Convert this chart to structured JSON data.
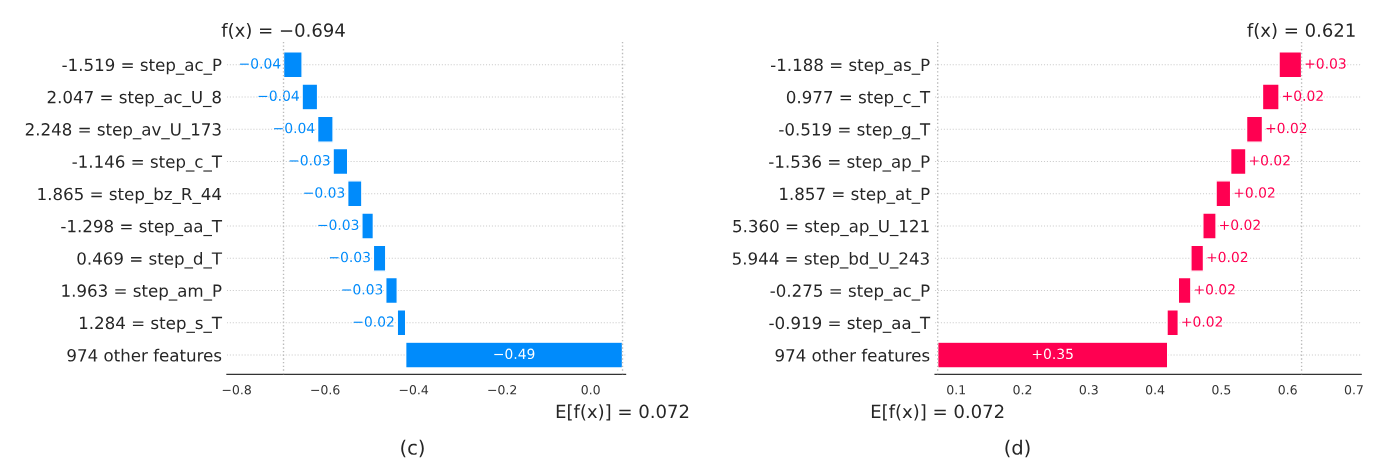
{
  "chart_data": [
    {
      "type": "bar",
      "orientation": "horizontal",
      "categories": [
        "-1.519 = step_ac_P",
        "2.047 = step_ac_U_8",
        "2.248 = step_av_U_173",
        "-1.146 = step_c_T",
        "1.865 = step_bz_R_44",
        "-1.298 = step_aa_T",
        "0.469 = step_d_T",
        "1.963 = step_am_P",
        "1.284 = step_s_T",
        "974 other features"
      ],
      "values": [
        -0.042,
        -0.035,
        -0.035,
        -0.033,
        -0.032,
        -0.026,
        -0.028,
        -0.026,
        -0.019,
        -0.49
      ],
      "base": [
        -0.652,
        -0.617,
        -0.582,
        -0.549,
        -0.517,
        -0.491,
        -0.463,
        -0.437,
        -0.418,
        0.072
      ],
      "value_labels": [
        "−0.04",
        "−0.04",
        "−0.04",
        "−0.03",
        "−0.03",
        "−0.03",
        "−0.03",
        "−0.03",
        "−0.02",
        "−0.49"
      ],
      "colors": [
        "#008bfb",
        "#008bfb",
        "#008bfb",
        "#008bfb",
        "#008bfb",
        "#008bfb",
        "#008bfb",
        "#008bfb",
        "#008bfb",
        "#008bfb"
      ],
      "xlim": [
        -0.822,
        0.079
      ],
      "xticks": [
        {
          "value": -0.8,
          "label": "−0.8"
        },
        {
          "value": -0.6,
          "label": "−0.6"
        },
        {
          "value": -0.4,
          "label": "−0.4"
        },
        {
          "value": -0.2,
          "label": "−0.2"
        },
        {
          "value": 0.0,
          "label": "0.0"
        }
      ],
      "ref_lines": [
        {
          "axis": "x",
          "value": -0.694,
          "label": "f(x) = −0.694"
        },
        {
          "axis": "x",
          "value": 0.072,
          "label": "E[f(x)] = 0.072"
        }
      ],
      "grid": "y",
      "annotations": [
        "(c)"
      ]
    },
    {
      "type": "bar",
      "orientation": "horizontal",
      "categories": [
        "-1.188 = step_as_P",
        "0.977 = step_c_T",
        "-0.519 = step_g_T",
        "-1.536 = step_ap_P",
        "1.857 = step_at_P",
        "5.360 = step_ap_U_121",
        "5.944 = step_bd_U_243",
        "-0.275 = step_ac_P",
        "-0.919 = step_aa_T",
        "974 other features"
      ],
      "values": [
        0.034,
        0.025,
        0.024,
        0.023,
        0.022,
        0.02,
        0.019,
        0.019,
        0.017,
        0.347
      ],
      "base": [
        0.587,
        0.562,
        0.538,
        0.514,
        0.492,
        0.472,
        0.454,
        0.435,
        0.418,
        0.072
      ],
      "value_labels": [
        "+0.03",
        "+0.02",
        "+0.02",
        "+0.02",
        "+0.02",
        "+0.02",
        "+0.02",
        "+0.02",
        "+0.02",
        "+0.35"
      ],
      "colors": [
        "#ff0051",
        "#ff0051",
        "#ff0051",
        "#ff0051",
        "#ff0051",
        "#ff0051",
        "#ff0051",
        "#ff0051",
        "#ff0051",
        "#ff0051"
      ],
      "xlim": [
        0.068,
        0.711
      ],
      "xticks": [
        0.1,
        0.2,
        0.3,
        0.4,
        0.5,
        0.6,
        0.7
      ],
      "ref_lines": [
        {
          "axis": "x",
          "value": 0.621,
          "label": "f(x) = 0.621"
        },
        {
          "axis": "x",
          "value": 0.072,
          "label": "E[f(x)] = 0.072"
        }
      ],
      "grid": "y",
      "annotations": [
        "(d)"
      ]
    }
  ]
}
